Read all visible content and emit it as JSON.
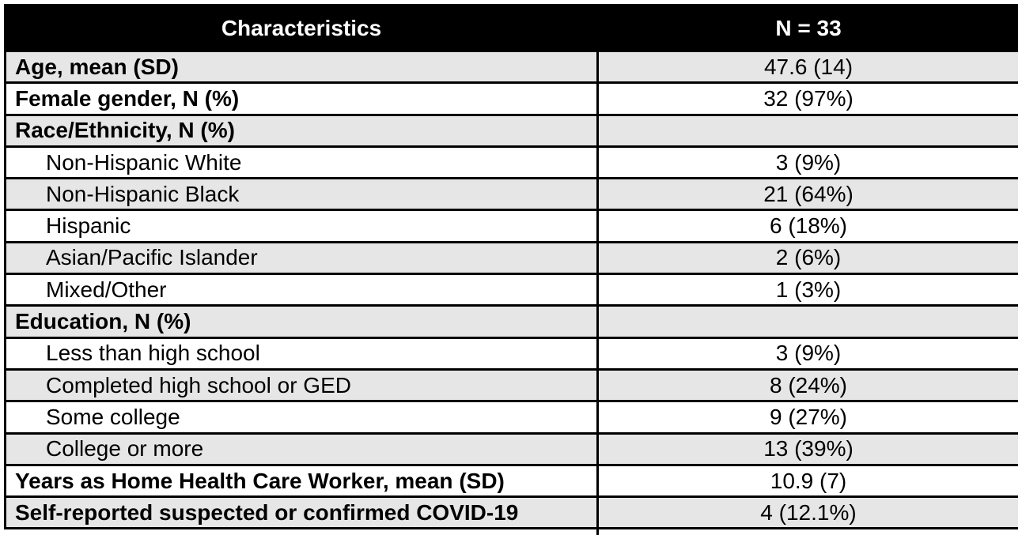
{
  "table": {
    "header": {
      "characteristics": "Characteristics",
      "n": "N = 33"
    },
    "rows": [
      {
        "label": "Age, mean (SD)",
        "value": "47.6 (14)",
        "style": "category"
      },
      {
        "label": "Female gender, N (%)",
        "value": "32 (97%)",
        "style": "category"
      },
      {
        "label": "Race/Ethnicity, N (%)",
        "value": "",
        "style": "category"
      },
      {
        "label": "Non-Hispanic White",
        "value": "3 (9%)",
        "style": "sub-item"
      },
      {
        "label": "Non-Hispanic Black",
        "value": "21 (64%)",
        "style": "sub-item"
      },
      {
        "label": "Hispanic",
        "value": "6 (18%)",
        "style": "sub-item"
      },
      {
        "label": "Asian/Pacific Islander",
        "value": "2 (6%)",
        "style": "sub-item"
      },
      {
        "label": "Mixed/Other",
        "value": "1 (3%)",
        "style": "sub-item"
      },
      {
        "label": "Education, N (%)",
        "value": "",
        "style": "category"
      },
      {
        "label": "Less than high school",
        "value": "3 (9%)",
        "style": "sub-item"
      },
      {
        "label": "Completed high school or GED",
        "value": "8 (24%)",
        "style": "sub-item"
      },
      {
        "label": "Some college",
        "value": "9 (27%)",
        "style": "sub-item"
      },
      {
        "label": "College or more",
        "value": "13 (39%)",
        "style": "sub-item"
      },
      {
        "label": "Years as Home Health Care Worker, mean (SD)",
        "value": "10.9 (7)",
        "style": "category"
      },
      {
        "label": "Self-reported suspected or confirmed COVID-19",
        "value": "4 (12.1%)",
        "style": "category"
      }
    ],
    "colors": {
      "header_bg": "#000000",
      "header_text": "#ffffff",
      "shaded_row_bg": "#e6e6e6",
      "plain_row_bg": "#ffffff",
      "border": "#000000"
    }
  }
}
